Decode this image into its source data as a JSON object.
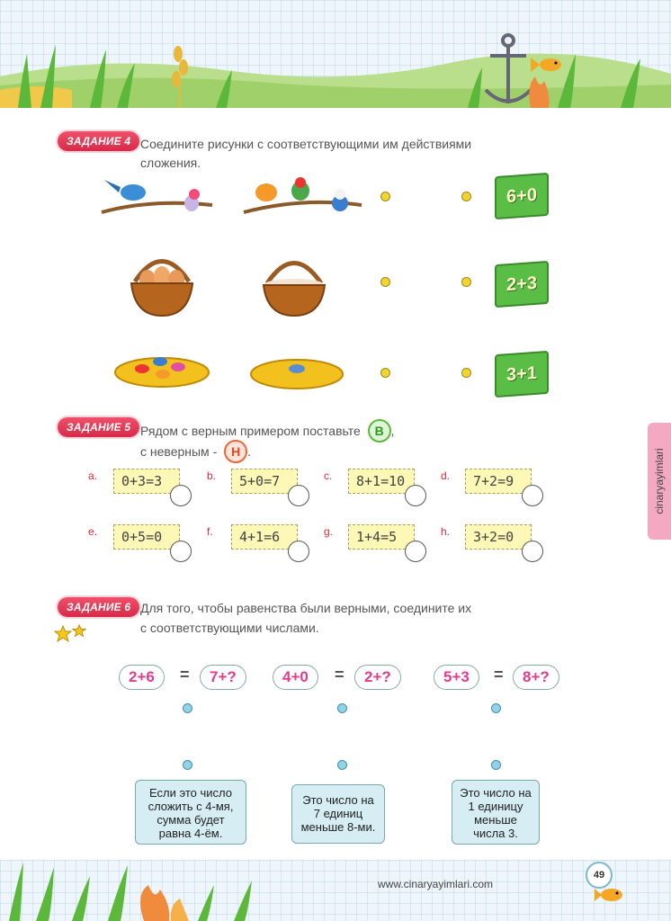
{
  "task4": {
    "badge": "ЗАДАНИЕ 4",
    "text_line1": "Соедините рисунки с соответствующими им действиями",
    "text_line2": "сложения.",
    "cards": [
      "6+0",
      "2+3",
      "3+1"
    ]
  },
  "task5": {
    "badge": "ЗАДАНИЕ 5",
    "text_line1_a": "Рядом с верным  примером поставьте",
    "mark_correct": "В",
    "comma": ",",
    "text_line2_a": "с неверным -",
    "mark_wrong": "Н",
    "period": ".",
    "items": [
      {
        "label": "a.",
        "expr": "0+3=3"
      },
      {
        "label": "b.",
        "expr": "5+0=7"
      },
      {
        "label": "c.",
        "expr": "8+1=10"
      },
      {
        "label": "d.",
        "expr": "7+2=9"
      },
      {
        "label": "e.",
        "expr": "0+5=0"
      },
      {
        "label": "f.",
        "expr": "4+1=6"
      },
      {
        "label": "g.",
        "expr": "1+4=5"
      },
      {
        "label": "h.",
        "expr": "3+2=0"
      }
    ]
  },
  "task6": {
    "badge": "ЗАДАНИЕ 6",
    "text_line1": "Для того, чтобы равенства были верными, соедините их",
    "text_line2": "с соответствующими числами.",
    "equations": [
      {
        "left": "2+6",
        "eq": "=",
        "right": "7+?"
      },
      {
        "left": "4+0",
        "eq": "=",
        "right": "2+?"
      },
      {
        "left": "5+3",
        "eq": "=",
        "right": "8+?"
      }
    ],
    "clues": [
      {
        "l1": "Если это число",
        "l2": "сложить с 4-мя,",
        "l3": "сумма будет",
        "l4": "равна 4-ём."
      },
      {
        "l1": "Это число на",
        "l2": "7 единиц",
        "l3": "меньше 8-ми."
      },
      {
        "l1": "Это число на",
        "l2": "1 единицу",
        "l3": "меньше",
        "l4": "числа 3."
      }
    ]
  },
  "side_tab": "cinaryayimlari",
  "website": "www.cinaryayimlari.com",
  "page_number": "49",
  "colors": {
    "badge": "#e0354f",
    "card_green": "#59bd46",
    "expr_bg": "#fdf8b5",
    "clue_bg": "#d6edf4"
  }
}
